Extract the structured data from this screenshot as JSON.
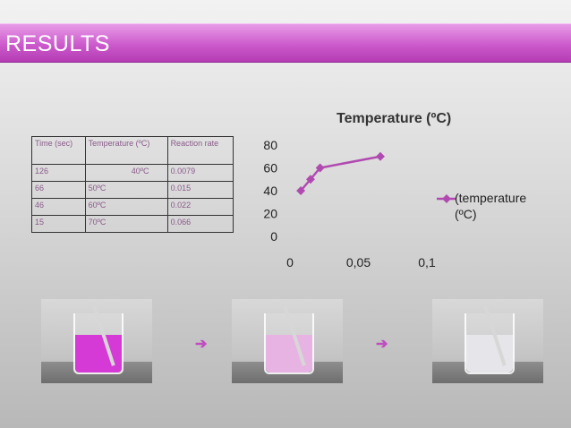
{
  "header": {
    "title": "RESULTS"
  },
  "table": {
    "headers": [
      "Time (sec)",
      "Temperature (ºC)",
      "Reaction rate"
    ],
    "rows": [
      [
        "126",
        "40ºC",
        "0.0079"
      ],
      [
        "66",
        "50ºC",
        "0.015"
      ],
      [
        "46",
        "60ºC",
        "0.022"
      ],
      [
        "15",
        "70ºC",
        "0.066"
      ]
    ]
  },
  "chart_data": {
    "type": "line",
    "title": "Temperature (ºC)",
    "x": [
      0.0079,
      0.015,
      0.022,
      0.066
    ],
    "series": [
      {
        "name": "(temperature (ºC)",
        "values": [
          40,
          50,
          60,
          70
        ],
        "color": "#b04ab0"
      }
    ],
    "x_ticks": [
      "0",
      "0,05",
      "0,1"
    ],
    "y_ticks": [
      "0",
      "20",
      "40",
      "60",
      "80"
    ],
    "xlim": [
      0,
      0.1
    ],
    "ylim": [
      0,
      80
    ],
    "grid": false,
    "legend": "right"
  },
  "photos": [
    {
      "name": "beaker-40c",
      "liquid_color": "#d63ad6"
    },
    {
      "name": "beaker-50c",
      "liquid_color": "#e7b3e2"
    },
    {
      "name": "beaker-60c",
      "liquid_color": "#e6e6ea"
    }
  ],
  "arrows": [
    "➔",
    "➔"
  ]
}
